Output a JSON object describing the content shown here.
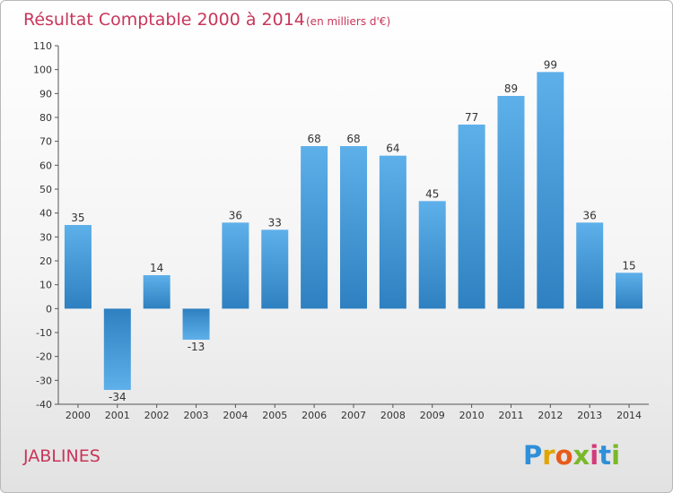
{
  "chart_data": {
    "type": "bar",
    "title": "Résultat Comptable 2000 à 2014",
    "subtitle": "(en milliers d'€)",
    "categories": [
      "2000",
      "2001",
      "2002",
      "2003",
      "2004",
      "2005",
      "2006",
      "2007",
      "2008",
      "2009",
      "2010",
      "2011",
      "2012",
      "2013",
      "2014"
    ],
    "values": [
      35,
      -34,
      14,
      -13,
      36,
      33,
      68,
      68,
      64,
      45,
      77,
      89,
      99,
      36,
      15
    ],
    "ylim": [
      -40,
      110
    ],
    "yticks": [
      110,
      100,
      90,
      80,
      70,
      60,
      50,
      40,
      30,
      20,
      10,
      0,
      -10,
      -20,
      -30,
      -40
    ],
    "grid": false,
    "bar_color_light": "#5eb0ea",
    "bar_color_dark": "#2e80c0"
  },
  "commune": "JABLINES",
  "logo": {
    "text": "Proxiti",
    "letters": [
      "P",
      "r",
      "o",
      "x",
      "i",
      "t",
      "i"
    ],
    "colors": [
      "#2f8fd8",
      "#e0a500",
      "#e85a1a",
      "#7ab82a",
      "#d43a7a",
      "#2f8fd8",
      "#7ab82a"
    ]
  },
  "colors": {
    "title": "#c8365a",
    "axis": "#555555"
  }
}
